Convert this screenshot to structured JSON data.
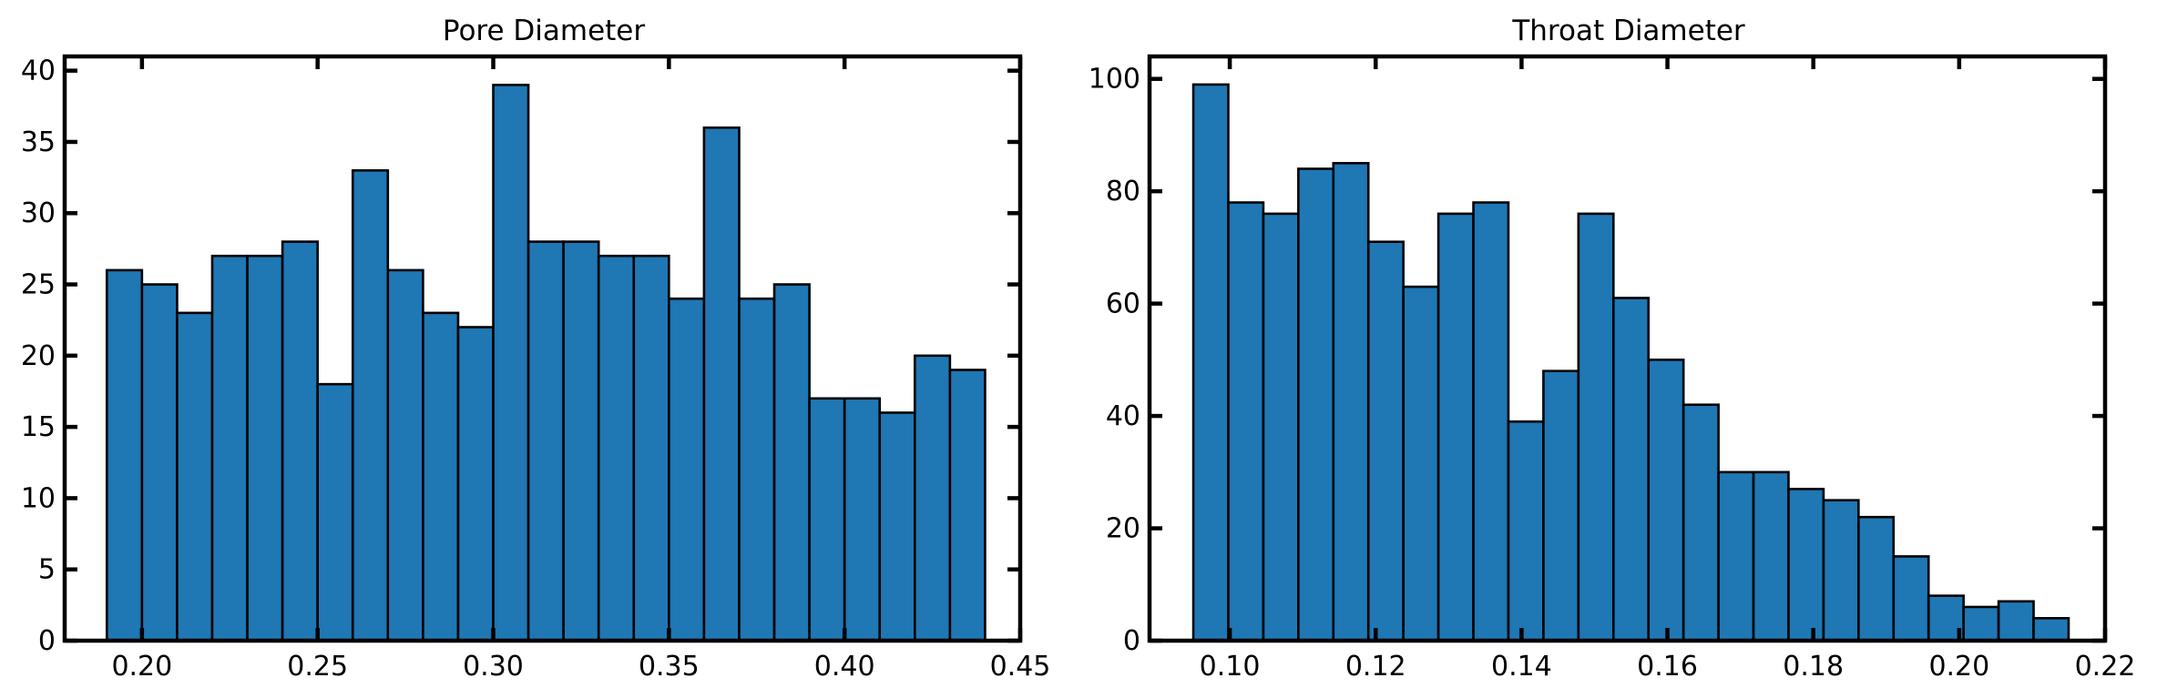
{
  "chart_data": [
    {
      "type": "bar",
      "title": "Pore Diameter",
      "xlabel": "",
      "ylabel": "",
      "xlim": [
        0.178,
        0.45
      ],
      "ylim": [
        0,
        41
      ],
      "bin_start": 0.19,
      "bin_width": 0.01,
      "values": [
        26,
        25,
        23,
        27,
        27,
        28,
        18,
        33,
        26,
        23,
        22,
        39,
        28,
        28,
        27,
        27,
        24,
        36,
        24,
        25,
        17,
        17,
        16,
        20,
        19
      ],
      "xticks": [
        0.2,
        0.25,
        0.3,
        0.35,
        0.4,
        0.45
      ],
      "xtick_labels": [
        "0.20",
        "0.25",
        "0.30",
        "0.35",
        "0.40",
        "0.45"
      ],
      "yticks": [
        0,
        5,
        10,
        15,
        20,
        25,
        30,
        35,
        40
      ],
      "ytick_labels": [
        "0",
        "5",
        "10",
        "15",
        "20",
        "25",
        "30",
        "35",
        "40"
      ],
      "bar_color": "#1f77b4",
      "edge_color": "#000000",
      "grid": false
    },
    {
      "type": "bar",
      "title": "Throat Diameter",
      "xlabel": "",
      "ylabel": "",
      "xlim": [
        0.089,
        0.22
      ],
      "ylim": [
        0,
        104
      ],
      "bin_start": 0.095,
      "bin_width": 0.0048,
      "values": [
        99,
        78,
        76,
        84,
        85,
        71,
        63,
        76,
        78,
        39,
        48,
        76,
        61,
        50,
        42,
        30,
        30,
        27,
        25,
        22,
        15,
        8,
        6,
        7,
        4
      ],
      "xticks": [
        0.1,
        0.12,
        0.14,
        0.16,
        0.18,
        0.2,
        0.22
      ],
      "xtick_labels": [
        "0.10",
        "0.12",
        "0.14",
        "0.16",
        "0.18",
        "0.20",
        "0.22"
      ],
      "yticks": [
        0,
        20,
        40,
        60,
        80,
        100
      ],
      "ytick_labels": [
        "0",
        "20",
        "40",
        "60",
        "80",
        "100"
      ],
      "bar_color": "#1f77b4",
      "edge_color": "#000000",
      "grid": false
    }
  ]
}
